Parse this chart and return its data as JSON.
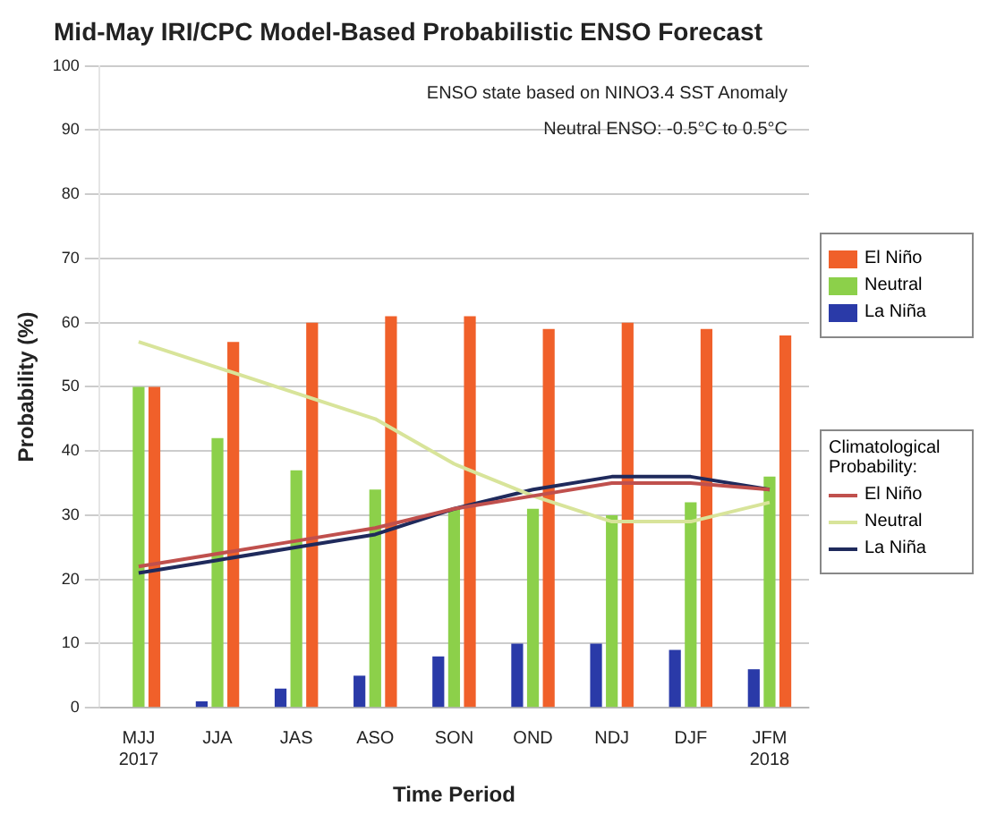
{
  "chart_data": {
    "type": "bar",
    "title": "Mid-May IRI/CPC Model-Based Probabilistic ENSO Forecast",
    "xlabel": "Time Period",
    "ylabel": "Probability (%)",
    "legend_title": "Climatological Probability:",
    "annotations": [
      "ENSO state based on NINO3.4 SST Anomaly",
      "Neutral ENSO: -0.5°C to 0.5°C"
    ],
    "categories": [
      "MJJ 2017",
      "JJA",
      "JAS",
      "ASO",
      "SON",
      "OND",
      "NDJ",
      "DJF",
      "JFM 2018"
    ],
    "series": [
      {
        "name": "La Niña",
        "color": "#2a3aa8",
        "values": [
          0,
          1,
          3,
          5,
          8,
          10,
          10,
          9,
          6
        ]
      },
      {
        "name": "Neutral",
        "color": "#8cd04a",
        "values": [
          50,
          42,
          37,
          34,
          31,
          31,
          30,
          32,
          36
        ]
      },
      {
        "name": "El Niño",
        "color": "#f0602a",
        "values": [
          50,
          57,
          60,
          61,
          61,
          59,
          60,
          59,
          58
        ]
      },
      {
        "name": "El Niño",
        "type": "line",
        "color": "#c0504d",
        "values": [
          22,
          24,
          26,
          28,
          31,
          33,
          35,
          35,
          34
        ]
      },
      {
        "name": "Neutral",
        "type": "line",
        "color": "#d8e49a",
        "values": [
          57,
          53,
          49,
          45,
          38,
          33,
          29,
          29,
          32
        ]
      },
      {
        "name": "La Niña",
        "type": "line",
        "color": "#1f2a5c",
        "values": [
          21,
          23,
          25,
          27,
          31,
          34,
          36,
          36,
          34
        ]
      }
    ],
    "ylim": [
      0,
      100
    ],
    "yticks": [
      0,
      10,
      20,
      30,
      40,
      50,
      60,
      70,
      80,
      90,
      100
    ],
    "grid": "y",
    "legend": "right",
    "marker": "none",
    "line_style": "solid"
  }
}
